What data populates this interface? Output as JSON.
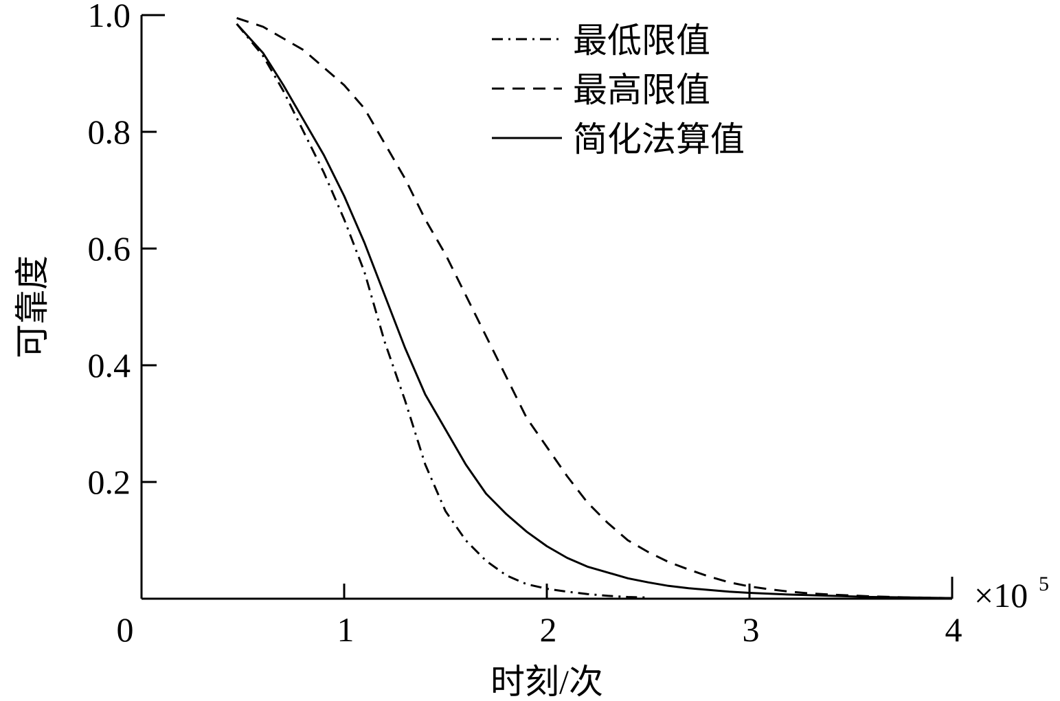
{
  "chart_data": {
    "type": "line",
    "title": "",
    "xlabel": "时刻/次",
    "ylabel": "可靠度",
    "x_scale_label": "×10",
    "x_scale_exponent": "5",
    "xlim": [
      0,
      4
    ],
    "ylim": [
      0,
      1.0
    ],
    "x_ticks": [
      {
        "value": 0,
        "label": "0"
      },
      {
        "value": 1,
        "label": "1"
      },
      {
        "value": 2,
        "label": "2"
      },
      {
        "value": 3,
        "label": "3"
      },
      {
        "value": 4,
        "label": "4"
      }
    ],
    "y_ticks": [
      {
        "value": 0.2,
        "label": "0.2"
      },
      {
        "value": 0.4,
        "label": "0.4"
      },
      {
        "value": 0.6,
        "label": "0.6"
      },
      {
        "value": 0.8,
        "label": "0.8"
      },
      {
        "value": 1.0,
        "label": "1.0"
      }
    ],
    "grid": false,
    "legend_position": "top-right",
    "series": [
      {
        "name": "最低限值",
        "style": "dashdot",
        "color": "#000000",
        "x": [
          0.47,
          0.6,
          0.7,
          0.8,
          0.9,
          1.0,
          1.1,
          1.2,
          1.3,
          1.4,
          1.5,
          1.6,
          1.7,
          1.8,
          1.9,
          2.0,
          2.1,
          2.2,
          2.3,
          2.4,
          2.5
        ],
        "y": [
          0.985,
          0.93,
          0.87,
          0.8,
          0.73,
          0.65,
          0.56,
          0.44,
          0.34,
          0.23,
          0.15,
          0.1,
          0.065,
          0.04,
          0.025,
          0.017,
          0.012,
          0.008,
          0.005,
          0.003,
          0.002
        ]
      },
      {
        "name": "最高限值",
        "style": "dashed",
        "color": "#000000",
        "x": [
          0.47,
          0.6,
          0.7,
          0.8,
          0.9,
          1.0,
          1.1,
          1.2,
          1.3,
          1.4,
          1.5,
          1.6,
          1.7,
          1.8,
          1.9,
          2.0,
          2.1,
          2.2,
          2.3,
          2.4,
          2.5,
          2.6,
          2.7,
          2.8,
          2.9,
          3.0,
          3.1,
          3.2,
          3.3,
          3.4,
          3.6,
          3.8,
          4.0
        ],
        "y": [
          0.995,
          0.98,
          0.96,
          0.94,
          0.91,
          0.88,
          0.84,
          0.78,
          0.72,
          0.65,
          0.59,
          0.52,
          0.45,
          0.38,
          0.31,
          0.26,
          0.21,
          0.165,
          0.13,
          0.1,
          0.08,
          0.063,
          0.05,
          0.038,
          0.028,
          0.021,
          0.016,
          0.012,
          0.009,
          0.007,
          0.004,
          0.002,
          0.001
        ]
      },
      {
        "name": "简化法算值",
        "style": "solid",
        "color": "#000000",
        "x": [
          0.47,
          0.6,
          0.7,
          0.8,
          0.9,
          1.0,
          1.1,
          1.2,
          1.3,
          1.4,
          1.5,
          1.6,
          1.7,
          1.8,
          1.9,
          2.0,
          2.1,
          2.2,
          2.3,
          2.4,
          2.5,
          2.6,
          2.7,
          2.8,
          2.9,
          3.0,
          3.2,
          3.4,
          3.6,
          3.8,
          4.0
        ],
        "y": [
          0.985,
          0.935,
          0.88,
          0.82,
          0.76,
          0.69,
          0.61,
          0.52,
          0.43,
          0.35,
          0.29,
          0.23,
          0.18,
          0.145,
          0.115,
          0.09,
          0.07,
          0.055,
          0.045,
          0.035,
          0.028,
          0.022,
          0.018,
          0.015,
          0.012,
          0.01,
          0.007,
          0.005,
          0.003,
          0.002,
          0.001
        ]
      }
    ]
  }
}
